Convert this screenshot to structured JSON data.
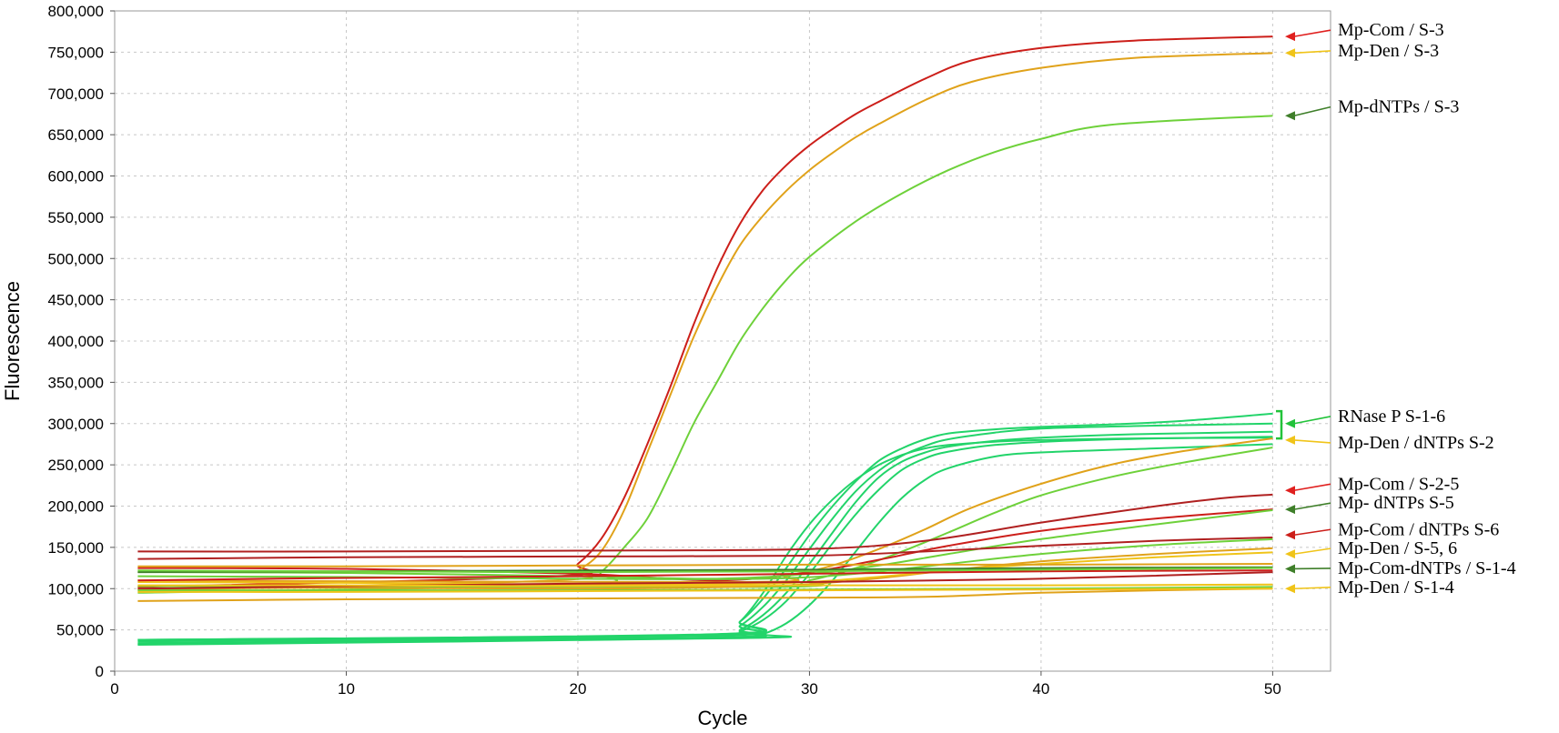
{
  "chart_data": {
    "type": "line",
    "title": "",
    "xlabel": "Cycle",
    "ylabel": "Fluorescence",
    "xlim": [
      0,
      52.5
    ],
    "ylim": [
      0,
      800000
    ],
    "x_ticks": [
      0,
      10,
      20,
      30,
      40,
      50
    ],
    "x_tick_labels": [
      "0",
      "10",
      "20",
      "30",
      "40",
      "50"
    ],
    "y_ticks": [
      0,
      50000,
      100000,
      150000,
      200000,
      250000,
      300000,
      350000,
      400000,
      450000,
      500000,
      550000,
      600000,
      650000,
      700000,
      750000,
      800000
    ],
    "y_tick_labels": [
      "0",
      "50,000",
      "100,000",
      "150,000",
      "200,000",
      "250,000",
      "300,000",
      "350,000",
      "400,000",
      "450,000",
      "500,000",
      "550,000",
      "600,000",
      "650,000",
      "700,000",
      "750,000",
      "800,000"
    ],
    "grid": true,
    "colors": {
      "red": "#cc1f1a",
      "darkred": "#b02020",
      "orange": "#e0a21a",
      "yellow": "#f0c419",
      "lime": "#6ed13a",
      "teal": "#22d46a",
      "darkgreen": "#3f7f2a",
      "brightred": "#e0201f"
    },
    "series": [
      {
        "color": "#cc1f1a",
        "x": [
          1,
          19,
          20,
          21,
          22,
          23,
          24,
          25,
          26,
          27,
          28,
          29,
          30,
          31,
          32,
          33,
          35,
          37,
          40,
          44,
          50
        ],
        "y": [
          102000,
          115000,
          130000,
          160000,
          210000,
          275000,
          345000,
          420000,
          487000,
          542000,
          583000,
          613000,
          637000,
          657000,
          675000,
          690000,
          718000,
          740000,
          755000,
          764000,
          769000
        ]
      },
      {
        "color": "#e0a21a",
        "x": [
          1,
          19,
          20,
          21,
          22,
          23,
          24,
          25,
          26,
          27,
          28,
          29,
          30,
          31,
          32,
          33,
          35,
          37,
          40,
          44,
          50
        ],
        "y": [
          98000,
          110000,
          122000,
          145000,
          195000,
          265000,
          335000,
          405000,
          465000,
          516000,
          552000,
          582000,
          607000,
          628000,
          647000,
          663000,
          692000,
          714000,
          731000,
          743000,
          749000
        ]
      },
      {
        "color": "#6ed13a",
        "x": [
          1,
          20,
          21,
          22,
          23,
          24,
          25,
          26,
          27,
          28,
          29,
          30,
          32,
          34,
          36,
          38,
          40,
          43,
          50
        ],
        "y": [
          95000,
          105000,
          120000,
          150000,
          185000,
          240000,
          300000,
          350000,
          400000,
          440000,
          474000,
          502000,
          545000,
          579000,
          607000,
          629000,
          645000,
          662000,
          673000
        ]
      },
      {
        "color": "#22d46a",
        "x": [
          1,
          26,
          27,
          28,
          29,
          30,
          31,
          32,
          33,
          34,
          35,
          36,
          38,
          40,
          43,
          46,
          50
        ],
        "y": [
          38000,
          45000,
          60000,
          88000,
          125000,
          165000,
          200000,
          230000,
          255000,
          270000,
          281000,
          288000,
          293000,
          296000,
          299000,
          303000,
          312000
        ]
      },
      {
        "color": "#22d46a",
        "x": [
          1,
          26,
          27,
          28,
          29,
          30,
          31,
          32,
          33,
          34,
          35,
          36,
          38,
          40,
          44,
          50
        ],
        "y": [
          36000,
          43000,
          55000,
          78000,
          110000,
          148000,
          185000,
          218000,
          243000,
          261000,
          273000,
          281000,
          289000,
          294000,
          297000,
          300000
        ]
      },
      {
        "color": "#22d46a",
        "x": [
          1,
          26,
          27,
          28,
          29,
          30,
          31,
          32,
          33,
          34,
          35,
          36,
          38,
          40,
          44,
          50
        ],
        "y": [
          34000,
          41000,
          50000,
          68000,
          95000,
          130000,
          168000,
          205000,
          235000,
          254000,
          265000,
          272000,
          279000,
          283000,
          287000,
          290000
        ]
      },
      {
        "color": "#22d46a",
        "x": [
          1,
          26,
          27,
          28,
          29,
          30,
          31,
          32,
          33,
          34,
          35,
          36,
          38,
          41,
          45,
          50
        ],
        "y": [
          33000,
          40000,
          48000,
          62000,
          85000,
          118000,
          155000,
          190000,
          220000,
          244000,
          258000,
          266000,
          274000,
          279000,
          282000,
          284000
        ]
      },
      {
        "color": "#22d46a",
        "x": [
          1,
          26,
          27,
          28,
          29,
          30,
          31,
          32,
          33,
          34,
          35,
          36,
          38,
          40,
          44,
          50
        ],
        "y": [
          38000,
          44000,
          60000,
          95000,
          140000,
          178000,
          208000,
          232000,
          250000,
          262000,
          270000,
          274000,
          278000,
          280000,
          282000,
          283000
        ]
      },
      {
        "color": "#22d46a",
        "x": [
          1,
          27,
          28,
          29,
          30,
          31,
          32,
          33,
          34,
          35,
          36,
          38,
          40,
          45,
          50
        ],
        "y": [
          32000,
          40000,
          45000,
          58000,
          80000,
          110000,
          145000,
          180000,
          210000,
          232000,
          246000,
          260000,
          265000,
          270000,
          275000
        ]
      },
      {
        "color": "#e0a21a",
        "x": [
          1,
          27,
          29,
          31,
          33,
          35,
          37,
          40,
          43,
          46,
          50
        ],
        "y": [
          110000,
          108000,
          115000,
          128000,
          148000,
          172000,
          198000,
          227000,
          250000,
          266000,
          282000
        ]
      },
      {
        "color": "#6ed13a",
        "x": [
          1,
          28,
          30,
          32,
          34,
          36,
          38,
          40,
          43,
          46,
          50
        ],
        "y": [
          103000,
          102000,
          110000,
          125000,
          145000,
          168000,
          192000,
          213000,
          235000,
          252000,
          271000
        ]
      },
      {
        "color": "#b02020",
        "x": [
          1,
          10,
          20,
          30,
          35,
          40,
          45,
          48,
          50
        ],
        "y": [
          145000,
          145000,
          146000,
          148000,
          158000,
          180000,
          200000,
          210000,
          214000
        ]
      },
      {
        "color": "#cc1f1a",
        "x": [
          1,
          10,
          20,
          26,
          30,
          33,
          36,
          40,
          45,
          50
        ],
        "y": [
          125000,
          124000,
          118000,
          110000,
          120000,
          135000,
          152000,
          170000,
          185000,
          196000
        ]
      },
      {
        "color": "#6ed13a",
        "x": [
          1,
          10,
          20,
          26,
          30,
          33,
          36,
          40,
          45,
          50
        ],
        "y": [
          120000,
          119000,
          115000,
          112000,
          118000,
          128000,
          142000,
          160000,
          178000,
          195000
        ]
      },
      {
        "color": "#b02020",
        "x": [
          1,
          10,
          20,
          30,
          35,
          40,
          45,
          50
        ],
        "y": [
          136000,
          138000,
          139000,
          140000,
          145000,
          152000,
          158000,
          162000
        ]
      },
      {
        "color": "#6ed13a",
        "x": [
          1,
          10,
          20,
          28,
          32,
          36,
          40,
          45,
          50
        ],
        "y": [
          115000,
          114000,
          112000,
          112000,
          118000,
          130000,
          142000,
          153000,
          160000
        ]
      },
      {
        "color": "#e0a21a",
        "x": [
          1,
          10,
          20,
          28,
          32,
          36,
          40,
          45,
          50
        ],
        "y": [
          100000,
          101000,
          100000,
          103000,
          110000,
          122000,
          133000,
          142000,
          149000
        ]
      },
      {
        "color": "#f0c419",
        "x": [
          1,
          10,
          20,
          28,
          32,
          36,
          40,
          45,
          50
        ],
        "y": [
          108000,
          107000,
          105000,
          106000,
          112000,
          122000,
          130000,
          138000,
          144000
        ]
      },
      {
        "color": "#cc1f1a",
        "x": [
          1,
          10,
          20,
          30,
          40,
          50
        ],
        "y": [
          110000,
          113000,
          115000,
          118000,
          121000,
          122000
        ]
      },
      {
        "color": "#b02020",
        "x": [
          1,
          10,
          20,
          30,
          40,
          50
        ],
        "y": [
          100000,
          103000,
          106000,
          108000,
          112000,
          120000
        ]
      },
      {
        "color": "#3f7f2a",
        "x": [
          1,
          10,
          20,
          30,
          40,
          50
        ],
        "y": [
          120000,
          121000,
          122000,
          123000,
          125000,
          126000
        ]
      },
      {
        "color": "#e0a21a",
        "x": [
          1,
          10,
          20,
          30,
          40,
          50
        ],
        "y": [
          127000,
          127000,
          128000,
          129000,
          129000,
          130000
        ]
      },
      {
        "color": "#6ed13a",
        "x": [
          1,
          10,
          20,
          30,
          40,
          50
        ],
        "y": [
          122000,
          121000,
          120000,
          121000,
          123000,
          125000
        ]
      },
      {
        "color": "#f0c419",
        "x": [
          1,
          10,
          20,
          30,
          40,
          50
        ],
        "y": [
          104000,
          104000,
          103000,
          104000,
          104000,
          105000
        ]
      },
      {
        "color": "#6ed13a",
        "x": [
          1,
          10,
          20,
          30,
          40,
          50
        ],
        "y": [
          98000,
          98000,
          98000,
          99000,
          100000,
          102000
        ]
      },
      {
        "color": "#e0a21a",
        "x": [
          1,
          10,
          20,
          30,
          35,
          40,
          45,
          50
        ],
        "y": [
          85000,
          87000,
          88000,
          89000,
          90000,
          95000,
          98000,
          100000
        ]
      },
      {
        "color": "#f0c419",
        "x": [
          1,
          10,
          20,
          30,
          40,
          50
        ],
        "y": [
          96000,
          96000,
          97000,
          98000,
          99000,
          100000
        ]
      }
    ],
    "annotations": [
      {
        "label": "Mp-Com / S-3",
        "target_y": 769000,
        "text_y": 770000,
        "arrow_color": "#e0201f"
      },
      {
        "label": "Mp-Den / S-3",
        "target_y": 749000,
        "text_y": 745000,
        "arrow_color": "#f0c419"
      },
      {
        "label": "Mp-dNTPs / S-3",
        "target_y": 673000,
        "text_y": 677000,
        "arrow_color": "#3f7f2a"
      },
      {
        "label": "RNase P S-1-6",
        "target_y": 300000,
        "text_y": 302000,
        "arrow_color": "#22c33a"
      },
      {
        "label": "Mp-Den / dNTPs S-2",
        "target_y": 280000,
        "text_y": 270000,
        "arrow_color": "#f0c419"
      },
      {
        "label": "Mp-Com / S-2-5",
        "target_y": 219000,
        "text_y": 220000,
        "arrow_color": "#e0201f"
      },
      {
        "label": "Mp- dNTPs S-5",
        "target_y": 196000,
        "text_y": 197000,
        "arrow_color": "#3f7f2a"
      },
      {
        "label": "Mp-Com / dNTPs S-6",
        "target_y": 165000,
        "text_y": 165000,
        "arrow_color": "#cc1f1a"
      },
      {
        "label": "Mp-Den / S-5, 6",
        "target_y": 142000,
        "text_y": 142000,
        "arrow_color": "#f0c419"
      },
      {
        "label": "Mp-Com-dNTPs / S-1-4",
        "target_y": 124000,
        "text_y": 118000,
        "arrow_color": "#3f7f2a"
      },
      {
        "label": "Mp-Den / S-1-4",
        "target_y": 100000,
        "text_y": 95000,
        "arrow_color": "#f0c419"
      }
    ]
  }
}
